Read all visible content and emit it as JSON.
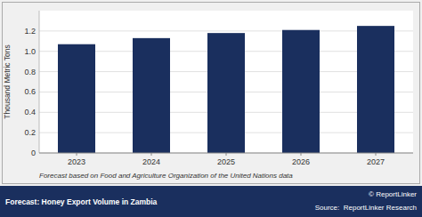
{
  "chart_data": {
    "type": "bar",
    "title": "Forecast: Honey Export Volume in Zambia",
    "categories": [
      "2023",
      "2024",
      "2025",
      "2026",
      "2027"
    ],
    "values": [
      1.07,
      1.13,
      1.18,
      1.21,
      1.25
    ],
    "color": "#1a2f5e",
    "ylabel": "Thousand Metric Tons",
    "ylim": [
      0,
      1.4
    ],
    "yticks": [
      0,
      0.2,
      0.4,
      0.6,
      0.8,
      {
        "value": 1.0,
        "label": "1.0"
      },
      1.2
    ],
    "grid": true,
    "annotations": [
      "Forecast based on Food and Agriculture Organization of the United Nations data",
      "© ReportLinker",
      "Source:  ReportLinker Research"
    ]
  }
}
